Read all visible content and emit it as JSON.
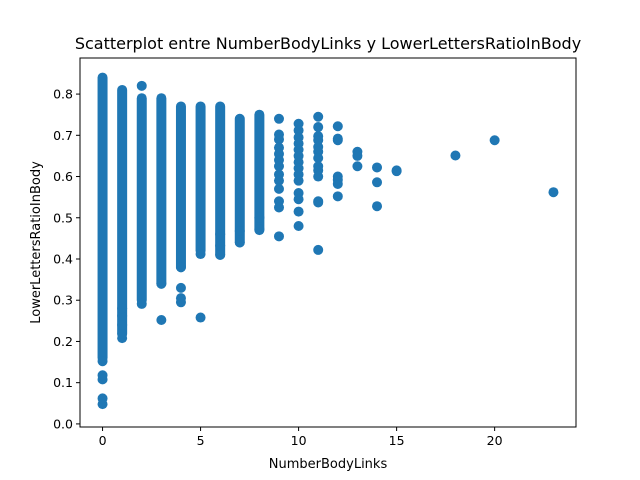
{
  "chart_data": {
    "type": "scatter",
    "title": "Scatterplot entre NumberBodyLinks y LowerLettersRatioInBody",
    "xlabel": "NumberBodyLinks",
    "ylabel": "LowerLettersRatioInBody",
    "xlim": [
      -1.15,
      24.15
    ],
    "ylim": [
      -0.0075,
      0.8875
    ],
    "xticks": [
      0,
      5,
      10,
      15,
      20
    ],
    "yticks": [
      0.0,
      0.1,
      0.2,
      0.3,
      0.4,
      0.5,
      0.6,
      0.7,
      0.8
    ],
    "xtick_labels": [
      "0",
      "5",
      "10",
      "15",
      "20"
    ],
    "ytick_labels": [
      "0.0",
      "0.1",
      "0.2",
      "0.3",
      "0.4",
      "0.5",
      "0.6",
      "0.7",
      "0.8"
    ],
    "marker_color": "#1f77b4",
    "grid": false,
    "columns": [
      {
        "x": 0,
        "ymin": 0.16,
        "ymax": 0.84
      },
      {
        "x": 1,
        "ymin": 0.22,
        "ymax": 0.81
      },
      {
        "x": 2,
        "ymin": 0.3,
        "ymax": 0.79
      },
      {
        "x": 3,
        "ymin": 0.34,
        "ymax": 0.79
      },
      {
        "x": 4,
        "ymin": 0.38,
        "ymax": 0.77
      },
      {
        "x": 5,
        "ymin": 0.42,
        "ymax": 0.77
      },
      {
        "x": 6,
        "ymin": 0.41,
        "ymax": 0.77
      },
      {
        "x": 7,
        "ymin": 0.44,
        "ymax": 0.74
      },
      {
        "x": 8,
        "ymin": 0.47,
        "ymax": 0.75
      }
    ],
    "points": [
      {
        "x": 0,
        "y": 0.048
      },
      {
        "x": 0,
        "y": 0.062
      },
      {
        "x": 0,
        "y": 0.108
      },
      {
        "x": 0,
        "y": 0.118
      },
      {
        "x": 0,
        "y": 0.152
      },
      {
        "x": 1,
        "y": 0.208
      },
      {
        "x": 1,
        "y": 0.218
      },
      {
        "x": 1,
        "y": 0.24
      },
      {
        "x": 1,
        "y": 0.262
      },
      {
        "x": 1,
        "y": 0.28
      },
      {
        "x": 2,
        "y": 0.82
      },
      {
        "x": 2,
        "y": 0.291
      },
      {
        "x": 3,
        "y": 0.252
      },
      {
        "x": 3,
        "y": 0.34
      },
      {
        "x": 4,
        "y": 0.295
      },
      {
        "x": 4,
        "y": 0.305
      },
      {
        "x": 4,
        "y": 0.33
      },
      {
        "x": 4,
        "y": 0.38
      },
      {
        "x": 5,
        "y": 0.258
      },
      {
        "x": 5,
        "y": 0.412
      },
      {
        "x": 6,
        "y": 0.41
      },
      {
        "x": 6,
        "y": 0.432
      },
      {
        "x": 6,
        "y": 0.46
      },
      {
        "x": 7,
        "y": 0.44
      },
      {
        "x": 7,
        "y": 0.468
      },
      {
        "x": 8,
        "y": 0.472
      },
      {
        "x": 8,
        "y": 0.5
      },
      {
        "x": 9,
        "y": 0.74
      },
      {
        "x": 9,
        "y": 0.702
      },
      {
        "x": 9,
        "y": 0.69
      },
      {
        "x": 9,
        "y": 0.67
      },
      {
        "x": 9,
        "y": 0.655
      },
      {
        "x": 9,
        "y": 0.64
      },
      {
        "x": 9,
        "y": 0.625
      },
      {
        "x": 9,
        "y": 0.605
      },
      {
        "x": 9,
        "y": 0.59
      },
      {
        "x": 9,
        "y": 0.57
      },
      {
        "x": 9,
        "y": 0.54
      },
      {
        "x": 9,
        "y": 0.525
      },
      {
        "x": 9,
        "y": 0.455
      },
      {
        "x": 10,
        "y": 0.728
      },
      {
        "x": 10,
        "y": 0.712
      },
      {
        "x": 10,
        "y": 0.695
      },
      {
        "x": 10,
        "y": 0.68
      },
      {
        "x": 10,
        "y": 0.665
      },
      {
        "x": 10,
        "y": 0.65
      },
      {
        "x": 10,
        "y": 0.635
      },
      {
        "x": 10,
        "y": 0.62
      },
      {
        "x": 10,
        "y": 0.605
      },
      {
        "x": 10,
        "y": 0.59
      },
      {
        "x": 10,
        "y": 0.56
      },
      {
        "x": 10,
        "y": 0.545
      },
      {
        "x": 10,
        "y": 0.515
      },
      {
        "x": 10,
        "y": 0.48
      },
      {
        "x": 11,
        "y": 0.745
      },
      {
        "x": 11,
        "y": 0.72
      },
      {
        "x": 11,
        "y": 0.698
      },
      {
        "x": 11,
        "y": 0.688
      },
      {
        "x": 11,
        "y": 0.672
      },
      {
        "x": 11,
        "y": 0.66
      },
      {
        "x": 11,
        "y": 0.645
      },
      {
        "x": 11,
        "y": 0.625
      },
      {
        "x": 11,
        "y": 0.615
      },
      {
        "x": 11,
        "y": 0.6
      },
      {
        "x": 11,
        "y": 0.54
      },
      {
        "x": 11,
        "y": 0.537
      },
      {
        "x": 11,
        "y": 0.422
      },
      {
        "x": 12,
        "y": 0.722
      },
      {
        "x": 12,
        "y": 0.692
      },
      {
        "x": 12,
        "y": 0.688
      },
      {
        "x": 12,
        "y": 0.6
      },
      {
        "x": 12,
        "y": 0.592
      },
      {
        "x": 12,
        "y": 0.582
      },
      {
        "x": 12,
        "y": 0.552
      },
      {
        "x": 13,
        "y": 0.66
      },
      {
        "x": 13,
        "y": 0.65
      },
      {
        "x": 13,
        "y": 0.625
      },
      {
        "x": 14,
        "y": 0.622
      },
      {
        "x": 14,
        "y": 0.586
      },
      {
        "x": 14,
        "y": 0.528
      },
      {
        "x": 15,
        "y": 0.615
      },
      {
        "x": 15,
        "y": 0.613
      },
      {
        "x": 18,
        "y": 0.651
      },
      {
        "x": 20,
        "y": 0.688
      },
      {
        "x": 23,
        "y": 0.562
      }
    ]
  }
}
